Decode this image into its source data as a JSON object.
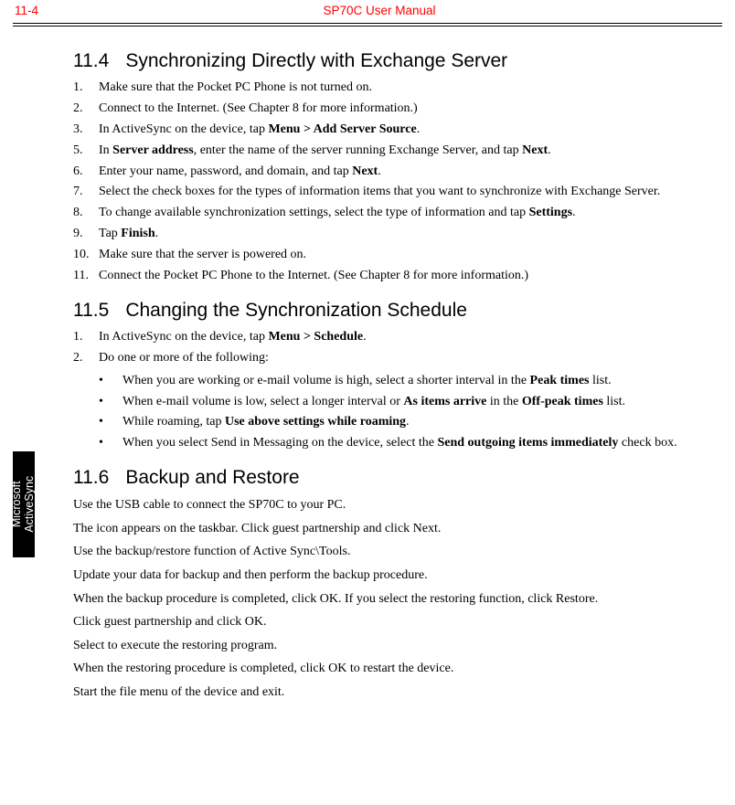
{
  "header": {
    "page_number": "11-4",
    "manual_title": "SP70C User Manual",
    "text_color": "#ff0000"
  },
  "side_tab": {
    "line1": "Microsoft",
    "line2": "ActiveSync",
    "bg_color": "#000000",
    "text_color": "#ffffff"
  },
  "section_11_4": {
    "number": "11.4",
    "title": "Synchronizing Directly with Exchange Server",
    "items": [
      {
        "n": "1.",
        "html": "Make sure that the Pocket PC Phone is not turned on."
      },
      {
        "n": "2.",
        "html": "Connect to the Internet. (See Chapter 8 for more information.)"
      },
      {
        "n": "3.",
        "html": "In ActiveSync on the device, tap <b>Menu > Add Server Source</b>."
      },
      {
        "n": "5.",
        "html": "In <b>Server address</b>, enter the name of the server running Exchange Server, and tap <b>Next</b>."
      },
      {
        "n": "6.",
        "html": "Enter your name, password, and domain, and tap <b>Next</b>."
      },
      {
        "n": "7.",
        "html": "Select the check boxes for the types of information items that you want to synchronize with Exchange Server."
      },
      {
        "n": "8.",
        "html": "To change available synchronization settings, select the type of information and tap <b>Settings</b>."
      },
      {
        "n": "9.",
        "html": "Tap <b>Finish</b>."
      },
      {
        "n": "10.",
        "html": "Make sure that the server is powered on."
      },
      {
        "n": "11.",
        "html": "Connect the Pocket PC Phone to the Internet. (See Chapter 8 for more information.)"
      }
    ]
  },
  "section_11_5": {
    "number": "11.5",
    "title": "Changing the Synchronization Schedule",
    "items": [
      {
        "n": "1.",
        "html": "In ActiveSync on the device, tap <b>Menu > Schedule</b>."
      },
      {
        "n": "2.",
        "html": "Do one or more of the following:"
      }
    ],
    "bullets": [
      {
        "html": "When you are working or e-mail volume is high, select a shorter interval in the <b>Peak times</b> list."
      },
      {
        "html": "When e-mail volume is low, select a longer interval or <b>As items arrive</b> in the <b>Off-peak times</b> list."
      },
      {
        "html": "While roaming, tap <b>Use above settings while roaming</b>."
      },
      {
        "html": "When you select Send in Messaging on the device, select the <b>Send outgoing items immediately</b> check box."
      }
    ]
  },
  "section_11_6": {
    "number": "11.6",
    "title": "Backup and Restore",
    "paragraphs": [
      "Use the USB cable to connect the SP70C to your PC.",
      "The  icon appears on the taskbar. Click guest partnership and click Next.",
      "Use the backup/restore function of Active Sync\\Tools.",
      "Update your data for backup and then perform the backup procedure.",
      "When the backup procedure is completed, click OK. If you select the restoring function, click Restore.",
      "Click guest partnership and click OK.",
      "Select to execute the restoring program.",
      "When the restoring procedure is completed, click OK to restart the device.",
      "Start the file menu of the device and exit."
    ]
  }
}
